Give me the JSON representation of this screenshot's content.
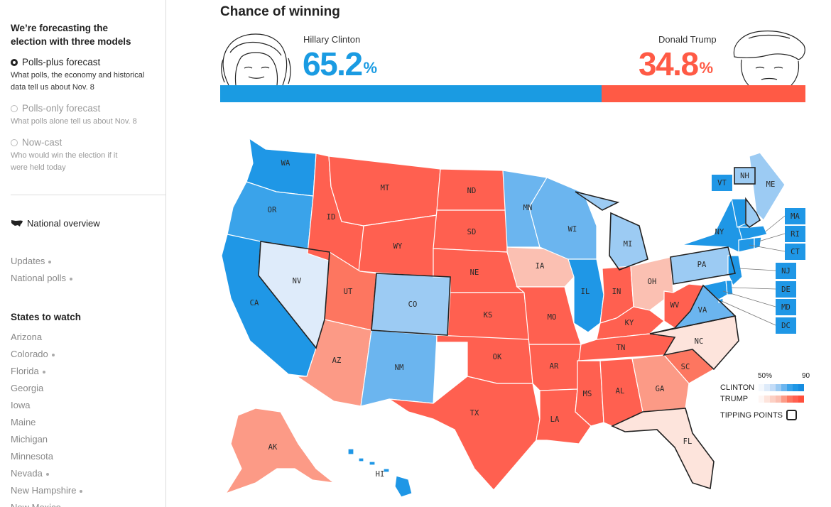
{
  "sidebar": {
    "heading": "We’re forecasting the election with three models",
    "models": [
      {
        "label": "Polls-plus forecast",
        "desc": "What polls, the economy and historical data tell us about Nov. 8",
        "selected": true
      },
      {
        "label": "Polls-only forecast",
        "desc": "What polls alone tell us about Nov. 8",
        "selected": false
      },
      {
        "label": "Now-cast",
        "desc": "Who would win the election if it were held today",
        "selected": false
      }
    ],
    "national_overview": "National overview",
    "updates_links": [
      {
        "label": "Updates",
        "has_dot": true
      },
      {
        "label": "National polls",
        "has_dot": true
      }
    ],
    "states_heading": "States to watch",
    "states": [
      {
        "label": "Arizona",
        "has_dot": false
      },
      {
        "label": "Colorado",
        "has_dot": true
      },
      {
        "label": "Florida",
        "has_dot": true
      },
      {
        "label": "Georgia",
        "has_dot": false
      },
      {
        "label": "Iowa",
        "has_dot": false
      },
      {
        "label": "Maine",
        "has_dot": false
      },
      {
        "label": "Michigan",
        "has_dot": false
      },
      {
        "label": "Minnesota",
        "has_dot": false
      },
      {
        "label": "Nevada",
        "has_dot": true
      },
      {
        "label": "New Hampshire",
        "has_dot": true
      },
      {
        "label": "New Mexico",
        "has_dot": false
      }
    ]
  },
  "chance": {
    "title": "Chance of winning",
    "clinton": {
      "name": "Hillary Clinton",
      "pct": "65.2",
      "pct_value": 65.2,
      "symbol": "%",
      "color": "#1a9be2"
    },
    "trump": {
      "name": "Donald Trump",
      "pct": "34.8",
      "pct_value": 34.8,
      "symbol": "%",
      "color": "#ff5a45"
    }
  },
  "map": {
    "colors": {
      "D4": "#1f97e6",
      "D3": "#3aa3ea",
      "D2": "#6bb5ef",
      "D1": "#9ccbf3",
      "D0": "#deebfa",
      "R4": "#ff6050",
      "R3": "#fd7660",
      "R2": "#fc9a86",
      "R1": "#fbc0b2",
      "R0": "#fde4dc"
    },
    "states": [
      {
        "abbr": "WA",
        "tier": "D4"
      },
      {
        "abbr": "OR",
        "tier": "D3"
      },
      {
        "abbr": "CA",
        "tier": "D4"
      },
      {
        "abbr": "NV",
        "tier": "D0"
      },
      {
        "abbr": "ID",
        "tier": "R4"
      },
      {
        "abbr": "MT",
        "tier": "R4"
      },
      {
        "abbr": "WY",
        "tier": "R4"
      },
      {
        "abbr": "UT",
        "tier": "R3"
      },
      {
        "abbr": "AZ",
        "tier": "R2"
      },
      {
        "abbr": "CO",
        "tier": "D1"
      },
      {
        "abbr": "NM",
        "tier": "D2"
      },
      {
        "abbr": "ND",
        "tier": "R4"
      },
      {
        "abbr": "SD",
        "tier": "R4"
      },
      {
        "abbr": "NE",
        "tier": "R4"
      },
      {
        "abbr": "KS",
        "tier": "R4"
      },
      {
        "abbr": "OK",
        "tier": "R4"
      },
      {
        "abbr": "TX",
        "tier": "R4"
      },
      {
        "abbr": "MN",
        "tier": "D2"
      },
      {
        "abbr": "IA",
        "tier": "R1"
      },
      {
        "abbr": "MO",
        "tier": "R4"
      },
      {
        "abbr": "AR",
        "tier": "R4"
      },
      {
        "abbr": "LA",
        "tier": "R4"
      },
      {
        "abbr": "WI",
        "tier": "D2"
      },
      {
        "abbr": "IL",
        "tier": "D4"
      },
      {
        "abbr": "MI",
        "tier": "D1"
      },
      {
        "abbr": "IN",
        "tier": "R4"
      },
      {
        "abbr": "OH",
        "tier": "R1"
      },
      {
        "abbr": "KY",
        "tier": "R4"
      },
      {
        "abbr": "TN",
        "tier": "R4"
      },
      {
        "abbr": "MS",
        "tier": "R4"
      },
      {
        "abbr": "AL",
        "tier": "R4"
      },
      {
        "abbr": "GA",
        "tier": "R2"
      },
      {
        "abbr": "FL",
        "tier": "R0"
      },
      {
        "abbr": "SC",
        "tier": "R3"
      },
      {
        "abbr": "NC",
        "tier": "R0"
      },
      {
        "abbr": "WV",
        "tier": "R4"
      },
      {
        "abbr": "VA",
        "tier": "D2"
      },
      {
        "abbr": "PA",
        "tier": "D1"
      },
      {
        "abbr": "NY",
        "tier": "D4"
      },
      {
        "abbr": "ME",
        "tier": "D1"
      },
      {
        "abbr": "AK",
        "tier": "R2"
      },
      {
        "abbr": "HI",
        "tier": "D4"
      },
      {
        "abbr": "VT",
        "tier": "D4"
      },
      {
        "abbr": "NH",
        "tier": "D1"
      },
      {
        "abbr": "MA",
        "tier": "D4"
      },
      {
        "abbr": "RI",
        "tier": "D4"
      },
      {
        "abbr": "CT",
        "tier": "D4"
      },
      {
        "abbr": "NJ",
        "tier": "D4"
      },
      {
        "abbr": "DE",
        "tier": "D4"
      },
      {
        "abbr": "MD",
        "tier": "D4"
      },
      {
        "abbr": "DC",
        "tier": "D4"
      }
    ],
    "tipping_points": [
      "NV",
      "CO",
      "MI",
      "PA",
      "VA",
      "NC",
      "FL",
      "NH"
    ]
  },
  "legend": {
    "tick_low": "50%",
    "tick_high": "90",
    "clinton_label": "CLINTON",
    "trump_label": "TRUMP",
    "tipping_label": "TIPPING POINTS",
    "clinton_scale": [
      "#f4f8fd",
      "#deebfa",
      "#c3dcf7",
      "#9ccbf3",
      "#6bb5ef",
      "#3aa3ea",
      "#1f97e6",
      "#168ce0"
    ],
    "trump_scale": [
      "#fef6f4",
      "#fde4dc",
      "#fcd0c4",
      "#fbc0b2",
      "#fc9a86",
      "#fd7660",
      "#ff6050",
      "#ff4f3c"
    ]
  }
}
